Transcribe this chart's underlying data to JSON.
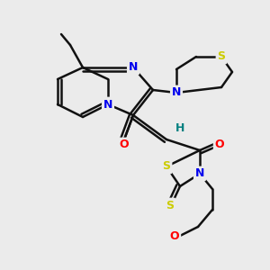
{
  "background_color": "#ebebeb",
  "atom_colors": {
    "S": "#cccc00",
    "N": "#0000ee",
    "O": "#ff0000",
    "C": "#000000",
    "H": "#008080"
  },
  "bond_color": "#111111",
  "bond_width": 1.8
}
